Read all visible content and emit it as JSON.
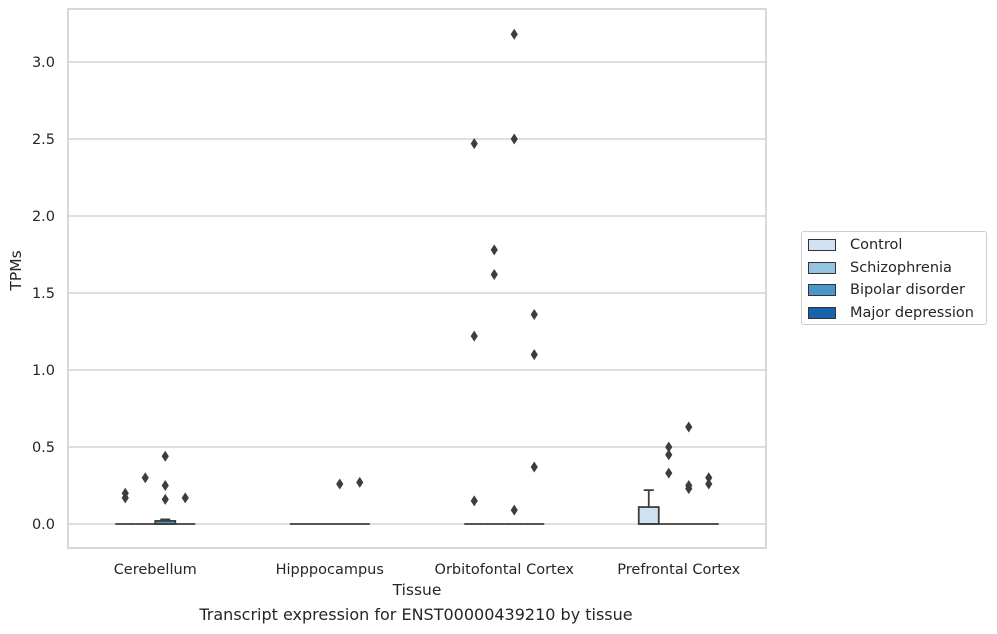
{
  "chart_data": {
    "type": "box",
    "title": "",
    "caption": "Transcript expression for ENST00000439210 by tissue",
    "xlabel": "Tissue",
    "ylabel": "TPMs",
    "ylim": [
      -0.15,
      3.32
    ],
    "yticks": [
      0.0,
      0.5,
      1.0,
      1.5,
      2.0,
      2.5,
      3.0
    ],
    "ytick_labels": [
      "0.0",
      "0.5",
      "1.0",
      "1.5",
      "2.0",
      "2.5",
      "3.0"
    ],
    "grid": "horizontal",
    "legend_position": "right",
    "categories": [
      "Cerebellum",
      "Hipppocampus",
      "Orbitofontal Cortex",
      "Prefrontal Cortex"
    ],
    "series": [
      {
        "name": "Control",
        "color": "#d0e1f2",
        "boxes": [
          {
            "q1": 0.0,
            "median": 0.0,
            "q3": 0.0,
            "whisker_low": 0.0,
            "whisker_high": 0.0,
            "outliers": [
              0.2,
              0.17
            ]
          },
          {
            "q1": 0.0,
            "median": 0.0,
            "q3": 0.0,
            "whisker_low": 0.0,
            "whisker_high": 0.0,
            "outliers": []
          },
          {
            "q1": 0.0,
            "median": 0.0,
            "q3": 0.0,
            "whisker_low": 0.0,
            "whisker_high": 0.0,
            "outliers": [
              2.47,
              1.22,
              0.15
            ]
          },
          {
            "q1": 0.0,
            "median": 0.0,
            "q3": 0.11,
            "whisker_low": 0.0,
            "whisker_high": 0.22,
            "outliers": []
          }
        ]
      },
      {
        "name": "Schizophrenia",
        "color": "#94c4df",
        "boxes": [
          {
            "q1": 0.0,
            "median": 0.0,
            "q3": 0.0,
            "whisker_low": 0.0,
            "whisker_high": 0.0,
            "outliers": [
              0.3
            ]
          },
          {
            "q1": 0.0,
            "median": 0.0,
            "q3": 0.0,
            "whisker_low": 0.0,
            "whisker_high": 0.0,
            "outliers": []
          },
          {
            "q1": 0.0,
            "median": 0.0,
            "q3": 0.0,
            "whisker_low": 0.0,
            "whisker_high": 0.0,
            "outliers": [
              1.78,
              1.62
            ]
          },
          {
            "q1": 0.0,
            "median": 0.0,
            "q3": 0.0,
            "whisker_low": 0.0,
            "whisker_high": 0.0,
            "outliers": [
              0.5,
              0.45,
              0.33
            ]
          }
        ]
      },
      {
        "name": "Bipolar disorder",
        "color": "#4a98c9",
        "boxes": [
          {
            "q1": 0.0,
            "median": 0.0,
            "q3": 0.02,
            "whisker_low": 0.0,
            "whisker_high": 0.03,
            "outliers": [
              0.44,
              0.25,
              0.16
            ]
          },
          {
            "q1": 0.0,
            "median": 0.0,
            "q3": 0.0,
            "whisker_low": 0.0,
            "whisker_high": 0.0,
            "outliers": [
              0.26
            ]
          },
          {
            "q1": 0.0,
            "median": 0.0,
            "q3": 0.0,
            "whisker_low": 0.0,
            "whisker_high": 0.0,
            "outliers": [
              3.18,
              2.5,
              0.09
            ]
          },
          {
            "q1": 0.0,
            "median": 0.0,
            "q3": 0.0,
            "whisker_low": 0.0,
            "whisker_high": 0.0,
            "outliers": [
              0.63,
              0.25,
              0.23
            ]
          }
        ]
      },
      {
        "name": "Major depression",
        "color": "#1764ab",
        "boxes": [
          {
            "q1": 0.0,
            "median": 0.0,
            "q3": 0.0,
            "whisker_low": 0.0,
            "whisker_high": 0.0,
            "outliers": [
              0.17
            ]
          },
          {
            "q1": 0.0,
            "median": 0.0,
            "q3": 0.0,
            "whisker_low": 0.0,
            "whisker_high": 0.0,
            "outliers": [
              0.27
            ]
          },
          {
            "q1": 0.0,
            "median": 0.0,
            "q3": 0.0,
            "whisker_low": 0.0,
            "whisker_high": 0.0,
            "outliers": [
              1.36,
              1.1,
              0.37
            ]
          },
          {
            "q1": 0.0,
            "median": 0.0,
            "q3": 0.0,
            "whisker_low": 0.0,
            "whisker_high": 0.0,
            "outliers": [
              0.3,
              0.26
            ]
          }
        ]
      }
    ]
  }
}
